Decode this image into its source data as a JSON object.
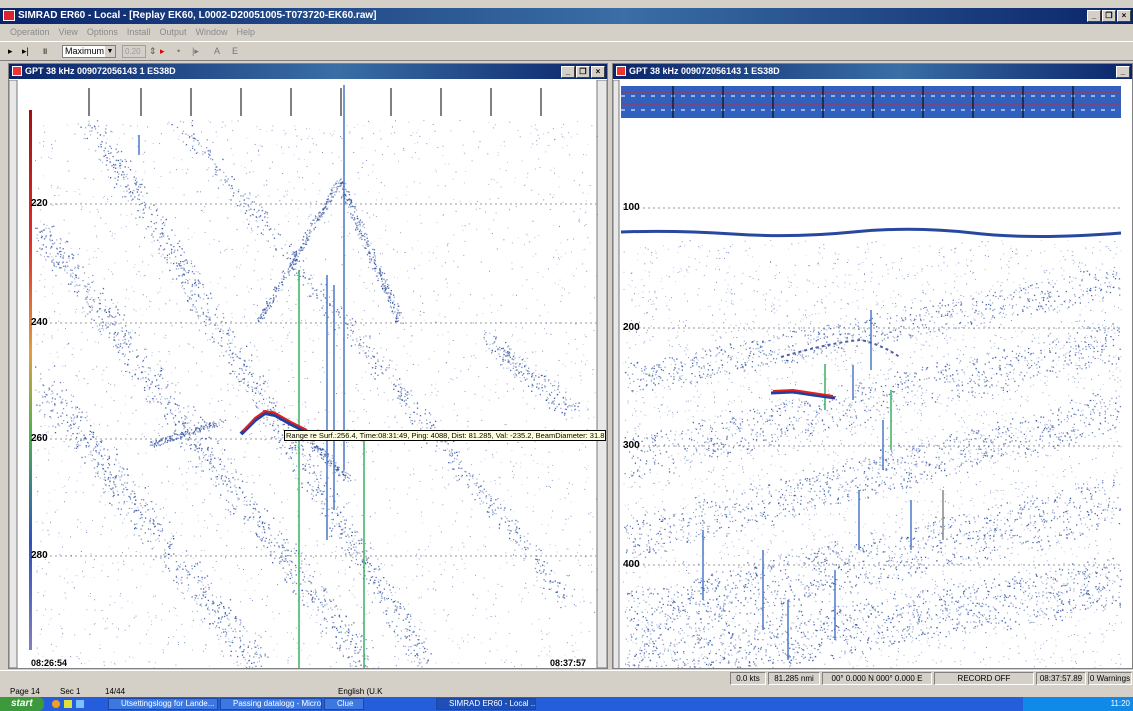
{
  "app": {
    "title": "SIMRAD ER60 - Local - [Replay EK60, L0002-D20051005-T073720-EK60.raw]",
    "menu": [
      "Operation",
      "View",
      "Options",
      "Install",
      "Output",
      "Window",
      "Help"
    ]
  },
  "toolbar": {
    "range_select": "Maximum",
    "value_field": "0.20",
    "tool_a": "A",
    "tool_e": "E"
  },
  "left_panel": {
    "title": "GPT  38 kHz 009072056143 1 ES38D",
    "depth_labels": [
      "220",
      "240",
      "260",
      "280"
    ],
    "time_start": "08:26:54",
    "time_end": "08:37:57",
    "tooltip": "Range re Surf.:256.4, Time:08:31:49, Ping: 4088, Dist: 81.285, Val: -235.2, BeamDiameter: 31.8"
  },
  "right_panel": {
    "title": "GPT  38 kHz 009072056143 1 ES38D",
    "depth_labels": [
      "100",
      "200",
      "300",
      "400"
    ]
  },
  "status": {
    "speed": "0.0 kts",
    "distance": "81.285 nmi",
    "position": "00° 0.000 N  000° 0.000 E",
    "record": "RECORD OFF",
    "time": "08:37:57.89",
    "warnings": "0 Warnings"
  },
  "wordbar": {
    "page": "Page 14",
    "sec": "Sec 1",
    "pages": "14/44",
    "lang": "English (U.K"
  },
  "taskbar": {
    "start": "start",
    "items": [
      "Utsettingslogg for Lande...",
      "Passing datalogg - Micro...",
      "Clue",
      "SIMRAD ER60 - Local ..."
    ],
    "clock": "11:20"
  },
  "colors": {
    "titlebar": "#0a246a",
    "echo_blue": "#3050a0",
    "track_red": "#e02020",
    "taskbar": "#245edb"
  }
}
